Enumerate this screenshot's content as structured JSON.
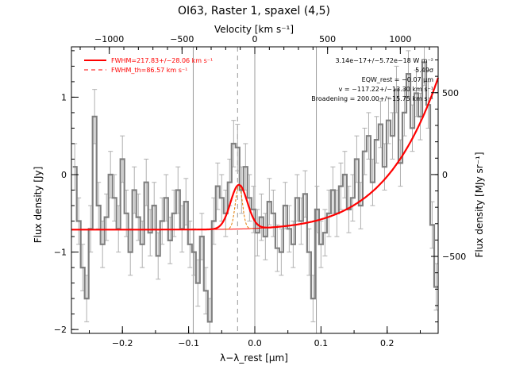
{
  "chart_data": {
    "type": "line",
    "title": "OI63, Raster 1, spaxel (4,5)",
    "xlabel": "λ−λ_rest [μm]",
    "ylabel": "Flux density [Jy]",
    "y2label": "Flux density [MJy sr⁻¹]",
    "top_xlabel": "Velocity [km s⁻¹]",
    "xlim": [
      -0.277,
      0.277
    ],
    "ylim": [
      -2.05,
      1.65
    ],
    "y2lim": [
      -970,
      780
    ],
    "top_xlim": [
      -1260,
      1260
    ],
    "xticks": [
      -0.2,
      -0.1,
      0.0,
      0.1,
      0.2
    ],
    "xtick_labels": [
      "−0.2",
      "−0.1",
      "0.0",
      "0.1",
      "0.2"
    ],
    "yticks": [
      -2,
      -1,
      0,
      1
    ],
    "ytick_labels": [
      "−2",
      "−1",
      "0",
      "1"
    ],
    "y2ticks": [
      -500,
      0,
      500
    ],
    "y2tick_labels": [
      "−500",
      "0",
      "500"
    ],
    "top_xticks": [
      -1000,
      -500,
      0,
      500,
      1000
    ],
    "top_xtick_labels": [
      "−1000",
      "−500",
      "0",
      "500",
      "1000"
    ],
    "vertical_lines": [
      -0.093,
      0.0,
      0.093
    ],
    "dashed_line_x": -0.026,
    "grid": false,
    "legend": [
      {
        "label": "FWHM=217.83+/−28.06 km s⁻¹",
        "style": "solid",
        "color": "#ff0000"
      },
      {
        "label": "FWHM_th=86.57 km s⁻¹",
        "style": "dashed",
        "color": "#ff0000"
      }
    ],
    "annotations": [
      "3.14e−17+/−5.72e−18 W m⁻²",
      "5.49σ",
      "EQW_rest = −0.07 μm",
      "v = −117.22+/−13.30 km s⁻¹",
      "Broadening = 200.00+/−15.75 km s⁻¹"
    ],
    "spectrum": {
      "color": "#808080",
      "error_color": "#b0b0b0",
      "x": [
        -0.272,
        -0.266,
        -0.26,
        -0.254,
        -0.248,
        -0.242,
        -0.236,
        -0.23,
        -0.224,
        -0.218,
        -0.212,
        -0.206,
        -0.2,
        -0.194,
        -0.188,
        -0.182,
        -0.176,
        -0.17,
        -0.164,
        -0.158,
        -0.152,
        -0.146,
        -0.14,
        -0.134,
        -0.128,
        -0.122,
        -0.116,
        -0.11,
        -0.104,
        -0.098,
        -0.092,
        -0.086,
        -0.08,
        -0.074,
        -0.068,
        -0.062,
        -0.056,
        -0.05,
        -0.044,
        -0.038,
        -0.032,
        -0.026,
        -0.02,
        -0.014,
        -0.008,
        -0.002,
        0.004,
        0.01,
        0.016,
        0.022,
        0.028,
        0.034,
        0.04,
        0.046,
        0.052,
        0.058,
        0.064,
        0.07,
        0.076,
        0.082,
        0.088,
        0.094,
        0.1,
        0.106,
        0.112,
        0.118,
        0.124,
        0.13,
        0.136,
        0.142,
        0.148,
        0.154,
        0.16,
        0.166,
        0.172,
        0.178,
        0.184,
        0.19,
        0.196,
        0.202,
        0.208,
        0.214,
        0.22,
        0.226,
        0.232,
        0.238,
        0.244,
        0.25,
        0.256,
        0.262,
        0.268,
        0.274
      ],
      "y": [
        0.1,
        -0.6,
        -1.2,
        -1.6,
        -0.7,
        0.75,
        -0.4,
        -0.9,
        -0.55,
        0.0,
        -0.3,
        -0.7,
        0.2,
        -0.5,
        -1.0,
        -0.2,
        -0.55,
        -0.9,
        -0.1,
        -0.75,
        -0.4,
        -1.05,
        -0.6,
        -0.3,
        -0.85,
        -0.5,
        -0.2,
        -0.7,
        -0.35,
        -0.9,
        -1.0,
        -1.4,
        -0.8,
        -1.5,
        -1.9,
        -0.6,
        -0.15,
        -0.3,
        -0.5,
        -0.1,
        0.4,
        0.35,
        -0.2,
        0.1,
        -0.3,
        -0.45,
        -0.75,
        -0.55,
        -0.8,
        -0.35,
        -0.5,
        -0.95,
        -1.0,
        -0.4,
        -0.7,
        -0.9,
        -0.3,
        -0.6,
        -0.25,
        -1.0,
        -1.6,
        -0.45,
        -0.9,
        -0.75,
        -0.5,
        -0.2,
        -0.5,
        -0.15,
        0.0,
        -0.45,
        -0.3,
        0.2,
        -0.4,
        0.3,
        0.5,
        -0.1,
        0.45,
        0.65,
        0.1,
        0.7,
        0.5,
        1.1,
        0.15,
        0.8,
        1.3,
        0.6,
        1.05,
        0.75,
        1.45,
        0.9,
        -0.65,
        -1.45
      ],
      "error": [
        0.3,
        0.3,
        0.3,
        0.3,
        0.3,
        0.35,
        0.3,
        0.3,
        0.3,
        0.3,
        0.3,
        0.3,
        0.3,
        0.3,
        0.3,
        0.3,
        0.3,
        0.3,
        0.3,
        0.3,
        0.3,
        0.3,
        0.3,
        0.3,
        0.3,
        0.3,
        0.3,
        0.3,
        0.3,
        0.3,
        0.3,
        0.3,
        0.3,
        0.3,
        0.3,
        0.3,
        0.3,
        0.3,
        0.3,
        0.3,
        0.3,
        0.3,
        0.3,
        0.3,
        0.3,
        0.3,
        0.3,
        0.3,
        0.3,
        0.3,
        0.3,
        0.3,
        0.3,
        0.3,
        0.3,
        0.3,
        0.3,
        0.3,
        0.3,
        0.3,
        0.3,
        0.3,
        0.3,
        0.3,
        0.3,
        0.3,
        0.3,
        0.3,
        0.3,
        0.3,
        0.3,
        0.3,
        0.3,
        0.3,
        0.3,
        0.3,
        0.3,
        0.3,
        0.3,
        0.3,
        0.3,
        0.3,
        0.3,
        0.3,
        0.3,
        0.3,
        0.3,
        0.3,
        0.3,
        0.3,
        0.3,
        0.3
      ]
    },
    "fit": {
      "color": "#ff0000",
      "baseline": {
        "a": -0.71,
        "b": 1.96,
        "c": 7.0
      },
      "gaussian": {
        "center": -0.024,
        "amplitude": 0.57,
        "sigma": 0.0127
      },
      "thermal_gaussian": {
        "center": -0.024,
        "amplitude": 0.57,
        "sigma": 0.0052
      }
    }
  }
}
